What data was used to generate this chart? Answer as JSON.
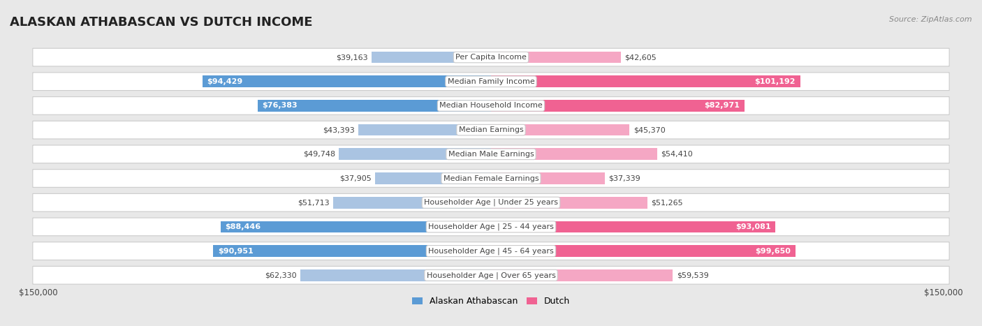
{
  "title": "ALASKAN ATHABASCAN VS DUTCH INCOME",
  "source": "Source: ZipAtlas.com",
  "categories": [
    "Per Capita Income",
    "Median Family Income",
    "Median Household Income",
    "Median Earnings",
    "Median Male Earnings",
    "Median Female Earnings",
    "Householder Age | Under 25 years",
    "Householder Age | 25 - 44 years",
    "Householder Age | 45 - 64 years",
    "Householder Age | Over 65 years"
  ],
  "alaskan_values": [
    39163,
    94429,
    76383,
    43393,
    49748,
    37905,
    51713,
    88446,
    90951,
    62330
  ],
  "dutch_values": [
    42605,
    101192,
    82971,
    45370,
    54410,
    37339,
    51265,
    93081,
    99650,
    59539
  ],
  "alaskan_labels": [
    "$39,163",
    "$94,429",
    "$76,383",
    "$43,393",
    "$49,748",
    "$37,905",
    "$51,713",
    "$88,446",
    "$90,951",
    "$62,330"
  ],
  "dutch_labels": [
    "$42,605",
    "$101,192",
    "$82,971",
    "$45,370",
    "$54,410",
    "$37,339",
    "$51,265",
    "$93,081",
    "$99,650",
    "$59,539"
  ],
  "alaskan_color_normal": "#aac4e2",
  "alaskan_color_bold": "#5b9bd5",
  "dutch_color_normal": "#f5a7c4",
  "dutch_color_bold": "#f06292",
  "bold_threshold": 70000,
  "max_value": 150000,
  "bg_color": "#e8e8e8",
  "row_bg_color": "#ffffff",
  "row_border_color": "#cccccc",
  "label_dark": "#444444",
  "label_white": "#ffffff",
  "title_color": "#222222",
  "source_color": "#888888",
  "legend_alaskan": "Alaskan Athabascan",
  "legend_dutch": "Dutch",
  "xlabel_left": "$150,000",
  "xlabel_right": "$150,000",
  "cat_label_bg": "#ffffff",
  "cat_label_border": "#cccccc",
  "cat_label_color": "#444444"
}
